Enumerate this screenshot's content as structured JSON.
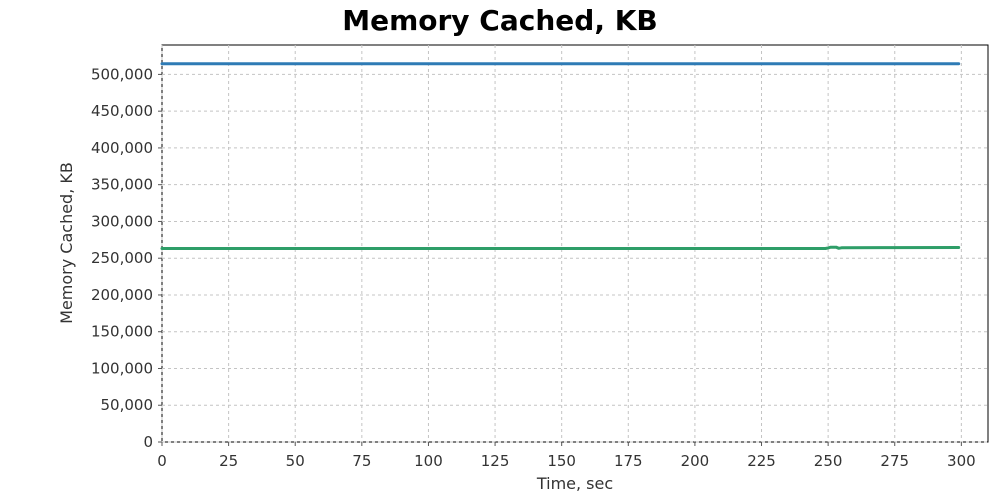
{
  "chart_data": {
    "type": "line",
    "title": "Memory Cached, KB",
    "xlabel": "Time, sec",
    "ylabel": "Memory Cached, KB",
    "xlim": [
      0,
      310
    ],
    "ylim": [
      0,
      540000
    ],
    "xticks": [
      0,
      25,
      50,
      75,
      100,
      125,
      150,
      175,
      200,
      225,
      250,
      275,
      300
    ],
    "yticks": [
      0,
      50000,
      100000,
      150000,
      200000,
      250000,
      300000,
      350000,
      400000,
      450000,
      500000
    ],
    "xtick_labels": [
      "0",
      "25",
      "50",
      "75",
      "100",
      "125",
      "150",
      "175",
      "200",
      "225",
      "250",
      "275",
      "300"
    ],
    "ytick_labels": [
      "0",
      "50,000",
      "100,000",
      "150,000",
      "200,000",
      "250,000",
      "300,000",
      "350,000",
      "400,000",
      "450,000",
      "500,000"
    ],
    "grid": true,
    "series": [
      {
        "color": "#2e7bb5",
        "x": [
          0,
          50,
          100,
          150,
          200,
          250,
          299
        ],
        "values": [
          514500,
          514500,
          514500,
          514500,
          514500,
          514500,
          514500
        ]
      },
      {
        "color": "#2e9e68",
        "x": [
          0,
          50,
          100,
          150,
          200,
          249,
          250,
          251,
          253,
          254,
          255,
          270,
          299
        ],
        "values": [
          263200,
          263200,
          263200,
          263200,
          263200,
          263200,
          264000,
          265000,
          265000,
          263500,
          264200,
          264400,
          264600
        ]
      }
    ]
  }
}
